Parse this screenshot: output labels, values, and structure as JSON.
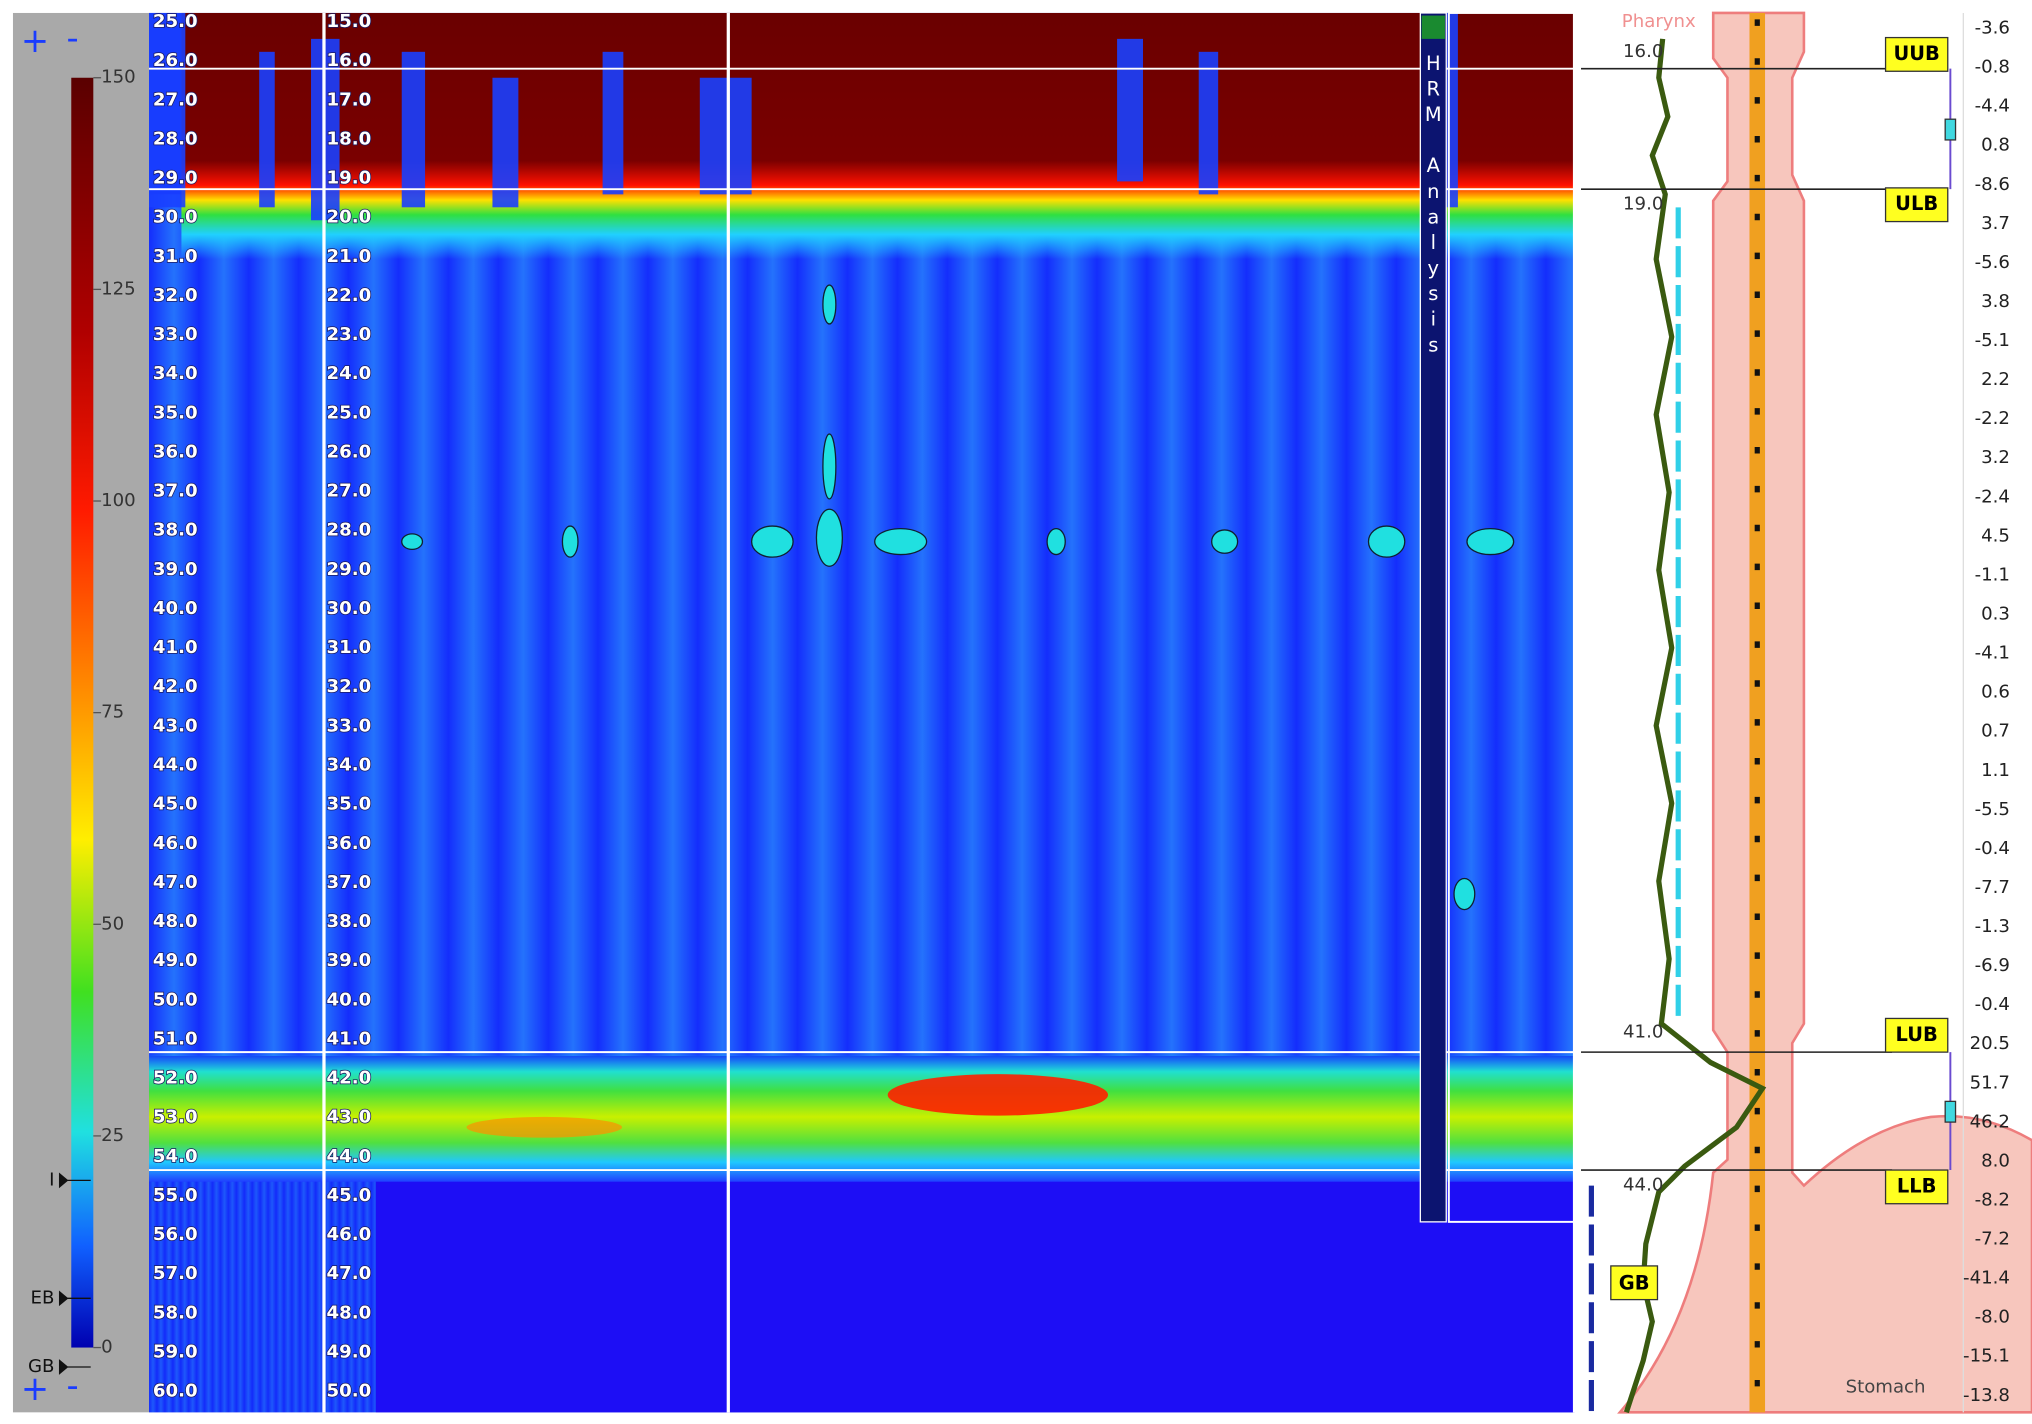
{
  "toolbar": {
    "zoom_in_top": "+",
    "zoom_out_top": "-",
    "zoom_in_bottom": "+",
    "zoom_out_bottom": "-"
  },
  "color_scale": {
    "ticks": [
      "150",
      "125",
      "100",
      "75",
      "50",
      "25",
      "0"
    ]
  },
  "markers_left": [
    "I",
    "EB",
    "GB"
  ],
  "depth_axis_primary": [
    "25.0",
    "26.0",
    "27.0",
    "28.0",
    "29.0",
    "30.0",
    "31.0",
    "32.0",
    "33.0",
    "34.0",
    "35.0",
    "36.0",
    "37.0",
    "38.0",
    "39.0",
    "40.0",
    "41.0",
    "42.0",
    "43.0",
    "44.0",
    "45.0",
    "46.0",
    "47.0",
    "48.0",
    "49.0",
    "50.0",
    "51.0",
    "52.0",
    "53.0",
    "54.0",
    "55.0",
    "56.0",
    "57.0",
    "58.0",
    "59.0",
    "60.0"
  ],
  "depth_axis_secondary": [
    "15.0",
    "16.0",
    "17.0",
    "18.0",
    "19.0",
    "20.0",
    "21.0",
    "22.0",
    "23.0",
    "24.0",
    "25.0",
    "26.0",
    "27.0",
    "28.0",
    "29.0",
    "30.0",
    "31.0",
    "32.0",
    "33.0",
    "34.0",
    "35.0",
    "36.0",
    "37.0",
    "38.0",
    "39.0",
    "40.0",
    "41.0",
    "42.0",
    "43.0",
    "44.0",
    "45.0",
    "46.0",
    "47.0",
    "48.0",
    "49.0",
    "50.0"
  ],
  "analysis_panel": {
    "title": "HRM Analysis"
  },
  "anatomy": {
    "top": "Pharynx",
    "bottom": "Stomach"
  },
  "landmarks": [
    {
      "label": "UUB",
      "position": "16.0"
    },
    {
      "label": "ULB",
      "position": "19.0"
    },
    {
      "label": "LUB",
      "position": "41.0"
    },
    {
      "label": "LLB",
      "position": "44.0"
    }
  ],
  "gastric_baseline": "GB",
  "pressure_readings": [
    "-3.6",
    "-0.8",
    "-4.4",
    "0.8",
    "-8.6",
    "3.7",
    "-5.6",
    "3.8",
    "-5.1",
    "2.2",
    "-2.2",
    "3.2",
    "-2.4",
    "4.5",
    "-1.1",
    "0.3",
    "-4.1",
    "0.6",
    "0.7",
    "1.1",
    "-5.5",
    "-0.4",
    "-7.7",
    "-1.3",
    "-6.9",
    "-0.4",
    "20.5",
    "51.7",
    "46.2",
    "8.0",
    "-8.2",
    "-7.2",
    "-41.4",
    "-8.0",
    "-15.1",
    "-13.8"
  ]
}
